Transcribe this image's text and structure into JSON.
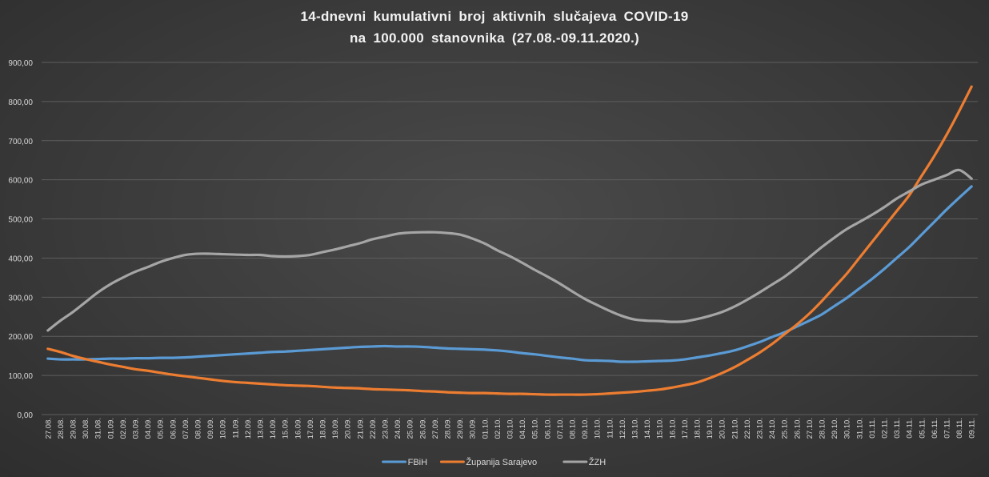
{
  "chart_data": {
    "type": "line",
    "title": "14-dnevni  kumulativni  broj  aktivnih  slučajeva  COVID-19",
    "subtitle": "na  100.000  stanovnika  (27.08.-09.11.2020.)",
    "xlabel": "",
    "ylabel": "",
    "ylim": [
      0,
      900
    ],
    "yticks": [
      "0,00",
      "100,00",
      "200,00",
      "300,00",
      "400,00",
      "500,00",
      "600,00",
      "700,00",
      "800,00",
      "900,00"
    ],
    "grid": true,
    "legend_position": "bottom",
    "categories": [
      "27.08.",
      "28.08.",
      "29.08.",
      "30.08.",
      "31.08.",
      "01.09.",
      "02.09.",
      "03.09.",
      "04.09.",
      "05.09.",
      "06.09.",
      "07.09.",
      "08.09.",
      "09.09.",
      "10.09.",
      "11.09.",
      "12.09.",
      "13.09.",
      "14.09.",
      "15.09.",
      "16.09.",
      "17.09.",
      "18.09.",
      "19.09.",
      "20.09.",
      "21.09.",
      "22.09.",
      "23.09.",
      "24.09.",
      "25.09.",
      "26.09.",
      "27.09.",
      "28.09.",
      "29.09.",
      "30.09.",
      "01.10.",
      "02.10.",
      "03.10.",
      "04.10.",
      "05.10.",
      "06.10.",
      "07.10.",
      "08.10.",
      "09.10.",
      "10.10.",
      "11.10.",
      "12.10.",
      "13.10.",
      "14.10.",
      "15.10.",
      "16.10.",
      "17.10.",
      "18.10.",
      "19.10.",
      "20.10.",
      "21.10.",
      "22.10.",
      "23.10.",
      "24.10.",
      "25.10.",
      "26.10.",
      "27.10.",
      "28.10.",
      "29.10.",
      "30.10.",
      "31.10.",
      "01.11.",
      "02.11.",
      "03.11.",
      "04.11.",
      "05.11.",
      "06.11.",
      "07.11.",
      "08.11.",
      "09.11."
    ],
    "series": [
      {
        "name": "FBiH",
        "color": "#5b9bd5",
        "values": [
          143,
          141,
          141,
          141,
          142,
          143,
          143,
          144,
          144,
          145,
          145,
          146,
          148,
          150,
          152,
          154,
          156,
          158,
          160,
          161,
          163,
          165,
          167,
          169,
          171,
          173,
          174,
          175,
          174,
          174,
          173,
          171,
          169,
          168,
          167,
          166,
          164,
          161,
          157,
          154,
          150,
          146,
          143,
          139,
          138,
          137,
          135,
          135,
          136,
          137,
          138,
          141,
          146,
          151,
          157,
          164,
          174,
          185,
          198,
          210,
          225,
          240,
          256,
          277,
          298,
          322,
          346,
          372,
          400,
          428,
          460,
          492,
          524,
          554,
          583
        ]
      },
      {
        "name": "Županija Sarajevo",
        "color": "#ed7d31",
        "values": [
          168,
          160,
          150,
          142,
          135,
          128,
          122,
          116,
          112,
          107,
          102,
          98,
          94,
          90,
          86,
          83,
          81,
          79,
          77,
          75,
          74,
          73,
          71,
          69,
          68,
          67,
          65,
          64,
          63,
          62,
          60,
          59,
          57,
          56,
          55,
          55,
          54,
          53,
          53,
          52,
          51,
          51,
          51,
          51,
          52,
          54,
          56,
          58,
          61,
          64,
          69,
          75,
          82,
          93,
          106,
          121,
          139,
          158,
          180,
          205,
          230,
          258,
          290,
          325,
          360,
          400,
          440,
          480,
          520,
          560,
          610,
          660,
          715,
          775,
          838
        ]
      },
      {
        "name": "ŽZH",
        "color": "#a5a5a5",
        "values": [
          215,
          240,
          262,
          287,
          312,
          333,
          350,
          365,
          377,
          390,
          400,
          408,
          411,
          411,
          410,
          409,
          408,
          408,
          405,
          404,
          405,
          408,
          415,
          422,
          430,
          438,
          448,
          455,
          462,
          465,
          466,
          466,
          464,
          460,
          450,
          437,
          420,
          405,
          388,
          370,
          353,
          335,
          315,
          296,
          280,
          265,
          252,
          243,
          240,
          239,
          237,
          238,
          244,
          252,
          262,
          276,
          293,
          312,
          332,
          352,
          376,
          402,
          428,
          452,
          474,
          492,
          510,
          530,
          552,
          570,
          588,
          600,
          612,
          625,
          603
        ]
      }
    ]
  }
}
